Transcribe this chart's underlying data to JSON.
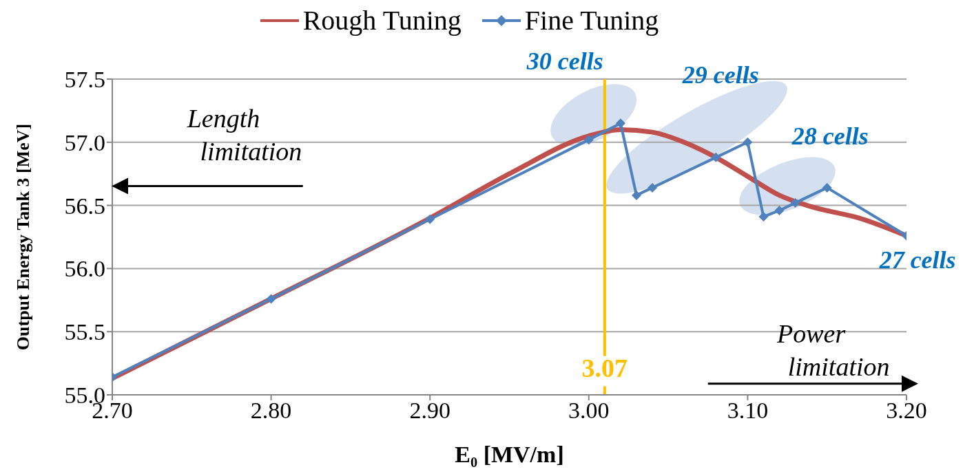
{
  "chart_data": {
    "type": "line",
    "xlabel": "E₀ [MV/m]",
    "ylabel": "Output Energy Tank 3 [MeV]",
    "xlim": [
      2.7,
      3.2
    ],
    "xticks": [
      {
        "value": 2.7,
        "label": "2.70"
      },
      {
        "value": 2.8,
        "label": "2.80"
      },
      {
        "value": 2.9,
        "label": "2.90"
      },
      {
        "value": 3.0,
        "label": "3.00"
      },
      {
        "value": 3.1,
        "label": "3.10"
      },
      {
        "value": 3.2,
        "label": "3.20"
      }
    ],
    "ylim": [
      55,
      57.5
    ],
    "yticks": [
      {
        "value": 55,
        "label": "55.0"
      },
      {
        "value": 55.5,
        "label": "55.5"
      },
      {
        "value": 56,
        "label": "56.0"
      },
      {
        "value": 56.5,
        "label": "56.5"
      },
      {
        "value": 57,
        "label": "57.0"
      },
      {
        "value": 57.5,
        "label": "57.5"
      }
    ],
    "grid": "y",
    "legend": "top",
    "series": [
      {
        "name": "Rough Tuning",
        "color": "#c0504d",
        "marker": "none",
        "x": [
          2.7,
          2.8,
          2.9,
          2.95,
          3.0,
          3.02,
          3.04,
          3.06,
          3.08,
          3.1,
          3.12,
          3.14,
          3.17,
          3.2
        ],
        "values": [
          55.13,
          55.76,
          56.4,
          56.75,
          57.05,
          57.1,
          57.08,
          57.0,
          56.88,
          56.73,
          56.58,
          56.49,
          56.4,
          56.26
        ]
      },
      {
        "name": "Fine Tuning",
        "color": "#4f81bd",
        "marker": "diamond",
        "x": [
          2.7,
          2.8,
          2.9,
          3.0,
          3.02,
          3.03,
          3.04,
          3.08,
          3.1,
          3.11,
          3.12,
          3.13,
          3.15,
          3.2
        ],
        "values": [
          55.14,
          55.76,
          56.39,
          57.02,
          57.15,
          56.58,
          56.64,
          56.88,
          57.0,
          56.41,
          56.46,
          56.52,
          56.64,
          56.26
        ]
      }
    ],
    "ref_lines": [
      {
        "axis": "x",
        "value": 3.01,
        "color": "#ffc000"
      }
    ],
    "annotations": [
      "30 cells",
      "29 cells",
      "28 cells",
      "27 cells",
      "Length limitation",
      "Power limitation",
      "3.07"
    ]
  }
}
